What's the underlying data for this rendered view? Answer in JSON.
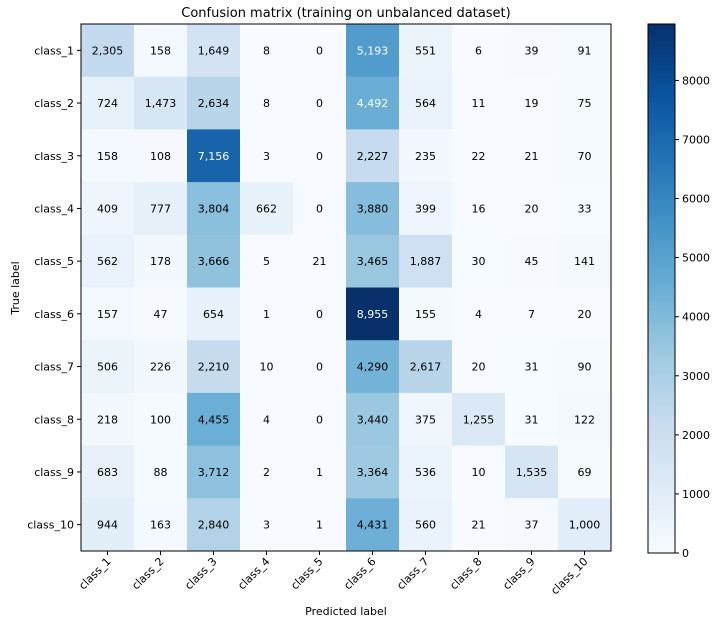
{
  "chart_data": {
    "type": "heatmap",
    "title": "Confusion matrix (training on unbalanced dataset)",
    "xlabel": "Predicted label",
    "ylabel": "True label",
    "x_categories": [
      "class_1",
      "class_2",
      "class_3",
      "class_4",
      "class_5",
      "class_6",
      "class_7",
      "class_8",
      "class_9",
      "class_10"
    ],
    "y_categories": [
      "class_1",
      "class_2",
      "class_3",
      "class_4",
      "class_5",
      "class_6",
      "class_7",
      "class_8",
      "class_9",
      "class_10"
    ],
    "values": [
      [
        2305,
        158,
        1649,
        8,
        0,
        5193,
        551,
        6,
        39,
        91
      ],
      [
        724,
        1473,
        2634,
        8,
        0,
        4492,
        564,
        11,
        19,
        75
      ],
      [
        158,
        108,
        7156,
        3,
        0,
        2227,
        235,
        22,
        21,
        70
      ],
      [
        409,
        777,
        3804,
        662,
        0,
        3880,
        399,
        16,
        20,
        33
      ],
      [
        562,
        178,
        3666,
        5,
        21,
        3465,
        1887,
        30,
        45,
        141
      ],
      [
        157,
        47,
        654,
        1,
        0,
        8955,
        155,
        4,
        7,
        20
      ],
      [
        506,
        226,
        2210,
        10,
        0,
        4290,
        2617,
        20,
        31,
        90
      ],
      [
        218,
        100,
        4455,
        4,
        0,
        3440,
        375,
        1255,
        31,
        122
      ],
      [
        683,
        88,
        3712,
        2,
        1,
        3364,
        536,
        10,
        1535,
        69
      ],
      [
        944,
        163,
        2840,
        3,
        1,
        4431,
        560,
        21,
        37,
        1000
      ]
    ],
    "colormap": "Blues",
    "color_range": [
      0,
      8955
    ],
    "colorbar_ticks": [
      0,
      1000,
      2000,
      3000,
      4000,
      5000,
      6000,
      7000,
      8000
    ],
    "grid": false,
    "legend": "colorbar-right"
  }
}
